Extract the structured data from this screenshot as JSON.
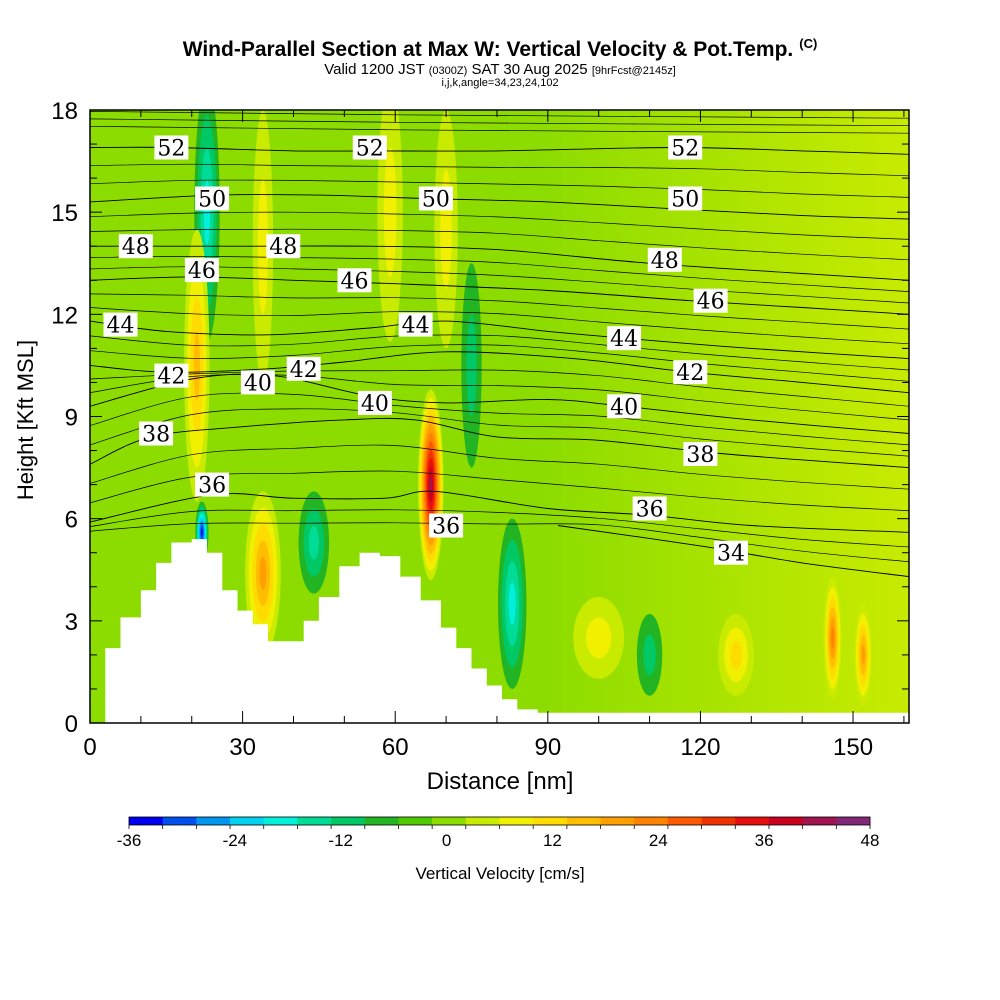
{
  "header": {
    "title": "Wind-Parallel Section at Max W: Vertical Velocity & Pot.Temp.",
    "copyright": "(C)",
    "valid_prefix": "Valid 1200 JST",
    "valid_utc": "(0300Z)",
    "valid_date": "SAT 30 Aug 2025",
    "forecast_info": "[9hrFcst@2145z]",
    "params": "i,j,k,angle=34,23,24,102"
  },
  "chart_data": {
    "type": "heatmap",
    "title": "Wind-Parallel Section at Max W: Vertical Velocity & Pot.Temp.",
    "xlabel": "Distance [nm]",
    "ylabel": "Height [Kft MSL]",
    "xlim": [
      0,
      161
    ],
    "ylim": [
      0,
      18
    ],
    "xticks": [
      0,
      30,
      60,
      90,
      120,
      150
    ],
    "yticks": [
      0,
      3,
      6,
      9,
      12,
      15,
      18
    ],
    "colorbar": {
      "label": "Vertical Velocity [cm/s]",
      "min": -36,
      "max": 48,
      "step": 4,
      "ticks": [
        -36,
        -24,
        -12,
        0,
        12,
        24,
        36,
        48
      ],
      "colors": [
        "#0000f0",
        "#0050f0",
        "#0096f0",
        "#00d2f0",
        "#00f0dc",
        "#00dc96",
        "#00c864",
        "#23b423",
        "#50c800",
        "#8cdc00",
        "#c8eb00",
        "#f0f000",
        "#ffdc00",
        "#ffbe00",
        "#ffa000",
        "#ff8200",
        "#ff5a00",
        "#f03200",
        "#e60f0f",
        "#c8001e",
        "#a01450",
        "#822878"
      ]
    },
    "terrain": [
      {
        "x": 0,
        "y": 0
      },
      {
        "x": 3,
        "y": 2.2
      },
      {
        "x": 6,
        "y": 3.1
      },
      {
        "x": 10,
        "y": 3.9
      },
      {
        "x": 13,
        "y": 4.7
      },
      {
        "x": 16,
        "y": 5.3
      },
      {
        "x": 20,
        "y": 5.4
      },
      {
        "x": 23,
        "y": 5.0
      },
      {
        "x": 26,
        "y": 3.9
      },
      {
        "x": 29,
        "y": 3.3
      },
      {
        "x": 32,
        "y": 2.9
      },
      {
        "x": 35,
        "y": 2.4
      },
      {
        "x": 39,
        "y": 2.4
      },
      {
        "x": 42,
        "y": 3.0
      },
      {
        "x": 45,
        "y": 3.7
      },
      {
        "x": 49,
        "y": 4.6
      },
      {
        "x": 53,
        "y": 5.0
      },
      {
        "x": 57,
        "y": 4.9
      },
      {
        "x": 61,
        "y": 4.3
      },
      {
        "x": 65,
        "y": 3.6
      },
      {
        "x": 69,
        "y": 2.8
      },
      {
        "x": 72,
        "y": 2.2
      },
      {
        "x": 75,
        "y": 1.6
      },
      {
        "x": 78,
        "y": 1.1
      },
      {
        "x": 81,
        "y": 0.7
      },
      {
        "x": 84,
        "y": 0.4
      },
      {
        "x": 88,
        "y": 0.3
      },
      {
        "x": 161,
        "y": 0.3
      }
    ],
    "w_cells": [
      {
        "x": 23,
        "y": 15.0,
        "rx": 2.5,
        "ry": 3.8,
        "w": -16
      },
      {
        "x": 22,
        "y": 5.6,
        "rx": 1.3,
        "ry": 0.9,
        "w": -32
      },
      {
        "x": 21,
        "y": 10.5,
        "rx": 2.5,
        "ry": 4.0,
        "w": 14
      },
      {
        "x": 34,
        "y": 4.4,
        "rx": 3.5,
        "ry": 2.4,
        "w": 18
      },
      {
        "x": 34,
        "y": 14.0,
        "rx": 2.0,
        "ry": 4.0,
        "w": 8
      },
      {
        "x": 44,
        "y": 5.3,
        "rx": 3.0,
        "ry": 1.5,
        "w": -10
      },
      {
        "x": 59,
        "y": 15.0,
        "rx": 2.5,
        "ry": 3.8,
        "w": 8
      },
      {
        "x": 67,
        "y": 7.0,
        "rx": 2.5,
        "ry": 2.8,
        "w": 44
      },
      {
        "x": 70,
        "y": 14.5,
        "rx": 2.3,
        "ry": 3.5,
        "w": 8
      },
      {
        "x": 75,
        "y": 10.5,
        "rx": 2.0,
        "ry": 3.0,
        "w": -8
      },
      {
        "x": 83,
        "y": 3.5,
        "rx": 2.8,
        "ry": 2.5,
        "w": -14
      },
      {
        "x": 100,
        "y": 2.5,
        "rx": 5.0,
        "ry": 1.2,
        "w": 8
      },
      {
        "x": 110,
        "y": 2.0,
        "rx": 2.5,
        "ry": 1.2,
        "w": -8
      },
      {
        "x": 127,
        "y": 2.0,
        "rx": 3.5,
        "ry": 1.2,
        "w": 10
      },
      {
        "x": 146,
        "y": 2.5,
        "rx": 1.8,
        "ry": 1.8,
        "w": 22
      },
      {
        "x": 152,
        "y": 2.0,
        "rx": 1.8,
        "ry": 1.5,
        "w": 18
      }
    ],
    "theta_contours": [
      {
        "label": "34",
        "pts": [
          [
            92,
            5.8
          ],
          [
            120,
            5.2
          ],
          [
            140,
            4.7
          ],
          [
            161,
            4.3
          ]
        ],
        "labels_at": [
          [
            126,
            5.0
          ]
        ]
      },
      {
        "label": "36",
        "pts": [
          [
            0,
            5.9
          ],
          [
            24,
            6.7
          ],
          [
            40,
            6.6
          ],
          [
            58,
            6.6
          ],
          [
            68,
            6.8
          ],
          [
            90,
            6.3
          ],
          [
            110,
            6.1
          ],
          [
            130,
            5.8
          ],
          [
            161,
            5.6
          ]
        ],
        "labels_at": [
          [
            24,
            7.0
          ],
          [
            70,
            5.8
          ],
          [
            110,
            6.3
          ]
        ]
      },
      {
        "label": "38",
        "pts": [
          [
            0,
            7.6
          ],
          [
            12,
            8.4
          ],
          [
            30,
            8.7
          ],
          [
            50,
            8.9
          ],
          [
            64,
            8.9
          ],
          [
            80,
            8.4
          ],
          [
            100,
            8.3
          ],
          [
            125,
            7.9
          ],
          [
            161,
            7.5
          ]
        ],
        "labels_at": [
          [
            13,
            8.5
          ],
          [
            120,
            7.9
          ]
        ]
      },
      {
        "label": "40",
        "pts": [
          [
            0,
            9.3
          ],
          [
            20,
            10.1
          ],
          [
            36,
            10.2
          ],
          [
            55,
            9.6
          ],
          [
            70,
            9.4
          ],
          [
            90,
            9.5
          ],
          [
            105,
            9.3
          ],
          [
            130,
            8.9
          ],
          [
            161,
            8.5
          ]
        ],
        "labels_at": [
          [
            33,
            10.0
          ],
          [
            56,
            9.4
          ],
          [
            105,
            9.3
          ]
        ]
      },
      {
        "label": "42",
        "pts": [
          [
            0,
            10.5
          ],
          [
            15,
            10.3
          ],
          [
            35,
            10.4
          ],
          [
            50,
            10.6
          ],
          [
            70,
            10.9
          ],
          [
            95,
            10.7
          ],
          [
            118,
            10.3
          ],
          [
            140,
            10.0
          ],
          [
            161,
            9.7
          ]
        ],
        "labels_at": [
          [
            16,
            10.2
          ],
          [
            42,
            10.4
          ],
          [
            118,
            10.3
          ]
        ]
      },
      {
        "label": "44",
        "pts": [
          [
            0,
            11.8
          ],
          [
            15,
            11.5
          ],
          [
            35,
            11.4
          ],
          [
            55,
            11.6
          ],
          [
            70,
            11.8
          ],
          [
            90,
            11.5
          ],
          [
            105,
            11.3
          ],
          [
            130,
            11.0
          ],
          [
            161,
            10.7
          ]
        ],
        "labels_at": [
          [
            6,
            11.7
          ],
          [
            64,
            11.7
          ],
          [
            105,
            11.3
          ]
        ]
      },
      {
        "label": "46",
        "pts": [
          [
            0,
            13.0
          ],
          [
            20,
            13.1
          ],
          [
            40,
            13.0
          ],
          [
            60,
            12.9
          ],
          [
            90,
            12.7
          ],
          [
            118,
            12.4
          ],
          [
            140,
            12.2
          ],
          [
            161,
            12.0
          ]
        ],
        "labels_at": [
          [
            22,
            13.3
          ],
          [
            52,
            13.0
          ],
          [
            122,
            12.4
          ]
        ]
      },
      {
        "label": "48",
        "pts": [
          [
            0,
            14.0
          ],
          [
            10,
            14.0
          ],
          [
            30,
            14.0
          ],
          [
            55,
            14.0
          ],
          [
            80,
            13.9
          ],
          [
            110,
            13.5
          ],
          [
            140,
            13.2
          ],
          [
            161,
            13.0
          ]
        ],
        "labels_at": [
          [
            9,
            14.0
          ],
          [
            38,
            14.0
          ],
          [
            113,
            13.6
          ]
        ]
      },
      {
        "label": "50",
        "pts": [
          [
            0,
            15.3
          ],
          [
            25,
            15.5
          ],
          [
            45,
            15.5
          ],
          [
            66,
            15.4
          ],
          [
            90,
            15.3
          ],
          [
            115,
            15.1
          ],
          [
            140,
            14.9
          ],
          [
            161,
            14.8
          ]
        ],
        "labels_at": [
          [
            24,
            15.4
          ],
          [
            68,
            15.4
          ],
          [
            117,
            15.4
          ]
        ]
      },
      {
        "label": "52",
        "pts": [
          [
            0,
            16.9
          ],
          [
            16,
            16.9
          ],
          [
            40,
            16.8
          ],
          [
            55,
            16.8
          ],
          [
            80,
            16.8
          ],
          [
            115,
            16.9
          ],
          [
            140,
            16.8
          ],
          [
            161,
            16.7
          ]
        ],
        "labels_at": [
          [
            16,
            16.9
          ],
          [
            55,
            16.9
          ],
          [
            117,
            16.9
          ]
        ]
      }
    ],
    "extra_contour_count": 30
  }
}
